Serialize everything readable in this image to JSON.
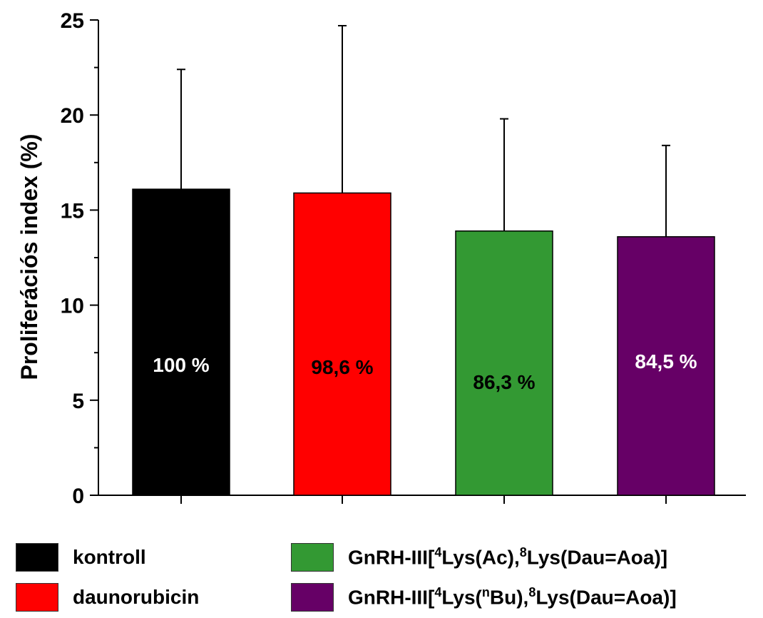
{
  "chart_data": {
    "type": "bar",
    "title": "",
    "xlabel": "",
    "ylabel": "Proliferációs index (%)",
    "ylim": [
      0,
      25
    ],
    "yticks": [
      0,
      5,
      10,
      15,
      20,
      25
    ],
    "grid": false,
    "legend_position": "bottom",
    "categories": [
      "kontroll",
      "daunorubicin",
      "GnRH-III[4Lys(Ac),8Lys(Dau=Aoa)]",
      "GnRH-III[4Lys(nBu),8Lys(Dau=Aoa)]"
    ],
    "values": [
      16.1,
      15.9,
      13.9,
      13.6
    ],
    "error_upper": [
      22.4,
      24.7,
      19.8,
      18.4
    ],
    "colors": [
      "#000000",
      "#ff0000",
      "#339933",
      "#660066"
    ],
    "data_labels": [
      "100 %",
      "98,6 %",
      "86,3 %",
      "84,5 %"
    ],
    "data_label_values": [
      6.9,
      6.8,
      6.0,
      7.1
    ],
    "data_label_colors": [
      "#ffffff",
      "#000000",
      "#000000",
      "#ffffff"
    ]
  },
  "legend": {
    "kontroll": "kontroll",
    "daunorubicin": "daunorubicin",
    "ac": {
      "pre": "GnRH-III[",
      "s1": "4",
      "m1": "Lys(Ac),",
      "s2": "8",
      "post": "Lys(Dau=Aoa)]"
    },
    "bu": {
      "pre": "GnRH-III[",
      "s1": "4",
      "m1": "Lys(",
      "s2": "n",
      "m2": "Bu),",
      "s3": "8",
      "post": "Lys(Dau=Aoa)]"
    }
  }
}
